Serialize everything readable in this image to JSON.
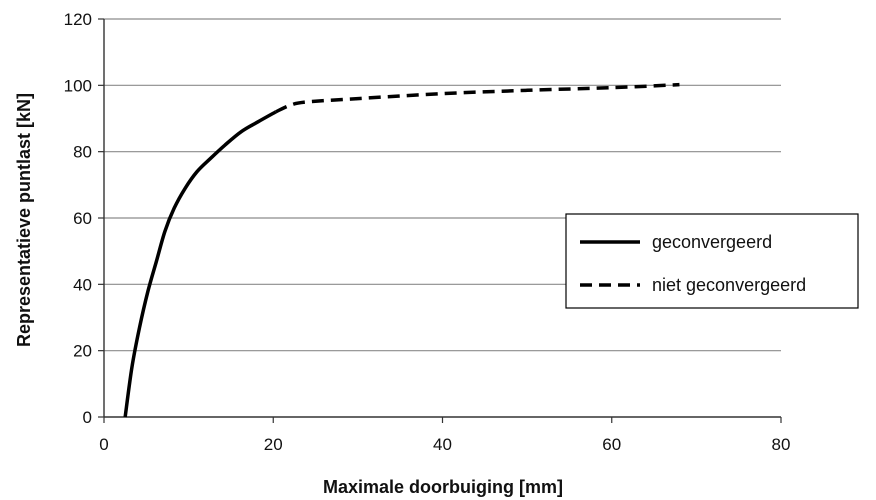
{
  "chart_data": {
    "type": "line",
    "title": "",
    "xlabel": "Maximale doorbuiging [mm]",
    "ylabel": "Representatieve puntlast [kN]",
    "xlim": [
      0,
      80
    ],
    "ylim": [
      0,
      120
    ],
    "xticks": [
      "0",
      "20",
      "40",
      "60",
      "80"
    ],
    "yticks": [
      "0",
      "20",
      "40",
      "60",
      "80",
      "100",
      "120"
    ],
    "grid": "horizontal",
    "legend_position": "right",
    "series": [
      {
        "name": "geconvergeerd",
        "style": "solid",
        "color": "#000000",
        "x": [
          2.5,
          3.3,
          4.2,
          5.2,
          6.2,
          7.2,
          8.3,
          9.6,
          11,
          12.6,
          14.3,
          16.2,
          18.2,
          20.3
        ],
        "y": [
          0,
          15,
          27,
          38,
          47,
          56,
          63,
          69,
          74,
          78,
          82,
          86,
          89,
          92
        ]
      },
      {
        "name": "niet geconvergeerd",
        "style": "dashed",
        "color": "#000000",
        "x": [
          20.3,
          22,
          24,
          30,
          40,
          50,
          60,
          68
        ],
        "y": [
          92,
          94,
          95,
          96,
          97.5,
          98.5,
          99.3,
          100.2
        ]
      }
    ]
  }
}
